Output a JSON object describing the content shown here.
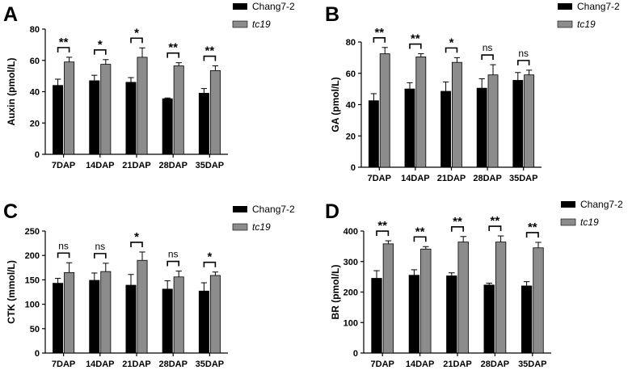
{
  "legend": {
    "series_1": "Chang7-2",
    "series_2": "tc19"
  },
  "colors": {
    "series_1": "#000000",
    "series_2": "#8c8c8c",
    "axis": "#000000"
  },
  "chart_data": [
    {
      "panel": "A",
      "type": "bar",
      "ylabel": "Auxin (pmol/L)",
      "ylim": [
        0,
        80
      ],
      "yticks": [
        0,
        20,
        40,
        60,
        80
      ],
      "categories": [
        "7DAP",
        "14DAP",
        "21DAP",
        "28DAP",
        "35DAP"
      ],
      "series": [
        {
          "name": "Chang7-2",
          "values": [
            44,
            47,
            46,
            35.5,
            39
          ],
          "errors": [
            4,
            3.5,
            3,
            0.5,
            3
          ]
        },
        {
          "name": "tc19",
          "values": [
            59,
            57.5,
            62,
            56.5,
            53.5
          ],
          "errors": [
            3,
            3,
            6,
            2,
            3
          ]
        }
      ],
      "significance": [
        "**",
        "*",
        "*",
        "**",
        "**"
      ]
    },
    {
      "panel": "B",
      "type": "bar",
      "ylabel": "GA (pmol/L)",
      "ylim": [
        0,
        80
      ],
      "yticks": [
        0,
        20,
        40,
        60,
        80
      ],
      "categories": [
        "7DAP",
        "14DAP",
        "21DAP",
        "28DAP",
        "35DAP"
      ],
      "series": [
        {
          "name": "Chang7-2",
          "values": [
            42.5,
            50,
            48.5,
            50.5,
            55.5
          ],
          "errors": [
            4.5,
            4,
            6,
            6,
            5
          ]
        },
        {
          "name": "tc19",
          "values": [
            72.5,
            70.5,
            67,
            59,
            59
          ],
          "errors": [
            4,
            2,
            3,
            6.5,
            3
          ]
        }
      ],
      "significance": [
        "**",
        "**",
        "*",
        "ns",
        "ns"
      ]
    },
    {
      "panel": "C",
      "type": "bar",
      "ylabel": "CTK (mmol/L)",
      "ylim": [
        0,
        250
      ],
      "yticks": [
        0,
        50,
        100,
        150,
        200,
        250
      ],
      "categories": [
        "7DAP",
        "14DAP",
        "21DAP",
        "28DAP",
        "35DAP"
      ],
      "series": [
        {
          "name": "Chang7-2",
          "values": [
            143,
            149,
            139,
            131,
            127
          ],
          "errors": [
            10,
            15,
            22,
            17,
            17
          ]
        },
        {
          "name": "tc19",
          "values": [
            165,
            167,
            190,
            156,
            159
          ],
          "errors": [
            20,
            17,
            17,
            12,
            7
          ]
        }
      ],
      "significance": [
        "ns",
        "ns",
        "*",
        "ns",
        "*"
      ]
    },
    {
      "panel": "D",
      "type": "bar",
      "ylabel": "BR (pmol/L)",
      "ylim": [
        0,
        400
      ],
      "yticks": [
        0,
        100,
        200,
        300,
        400
      ],
      "categories": [
        "7DAP",
        "14DAP",
        "21DAP",
        "28DAP",
        "35DAP"
      ],
      "series": [
        {
          "name": "Chang7-2",
          "values": [
            245,
            255,
            253,
            223,
            220
          ],
          "errors": [
            25,
            18,
            10,
            6,
            14
          ]
        },
        {
          "name": "tc19",
          "values": [
            358,
            341,
            364,
            364,
            345
          ],
          "errors": [
            10,
            8,
            18,
            20,
            18
          ]
        }
      ],
      "significance": [
        "**",
        "**",
        "**",
        "**",
        "**"
      ]
    }
  ]
}
